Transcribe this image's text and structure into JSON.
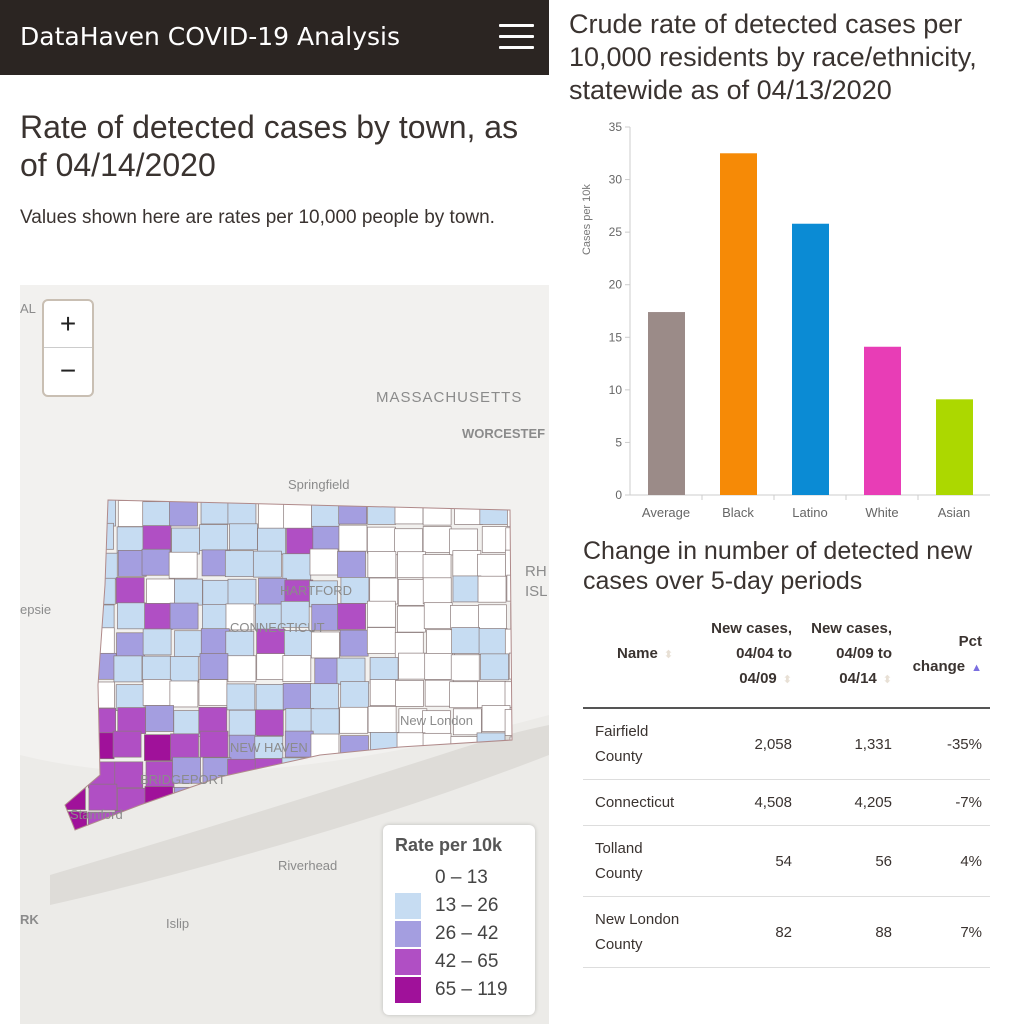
{
  "header": {
    "title": "DataHaven COVID-19 Analysis",
    "menu_icon": "hamburger-icon"
  },
  "map_section": {
    "title": "Rate of detected cases by town, as of 04/14/2020",
    "description": "Values shown here are rates per 10,000 people by town.",
    "zoom_in": "+",
    "zoom_out": "−",
    "labels": {
      "massachusetts": "MASSACHUSETTS",
      "worcester": "WORCESTEF",
      "springfield": "Springfield",
      "hartford": "HARTFORD",
      "connecticut": "CONNECTICUT",
      "new_haven": "NEW HAVEN",
      "bridgeport": "BRIDGEPORT",
      "stamford": "Stamford",
      "new_london": "New London",
      "riverhead": "Riverhead",
      "islip": "Islip",
      "rhode_island_1": "RH",
      "rhode_island_2": "ISL",
      "poughkeepsie": "epsie",
      "albany": "AL",
      "ny": "RK"
    },
    "legend": {
      "title": "Rate per 10k",
      "items": [
        {
          "label": "0 – 13",
          "color": "#ffffff"
        },
        {
          "label": "13 – 26",
          "color": "#c6dcf2"
        },
        {
          "label": "26 – 42",
          "color": "#a49ee0"
        },
        {
          "label": "42 – 65",
          "color": "#b04fc4"
        },
        {
          "label": "65 – 119",
          "color": "#a0119a"
        }
      ]
    }
  },
  "chart_data": {
    "type": "bar",
    "title": "Crude rate of detected cases per 10,000 residents by race/ethnicity, statewide as of 04/13/2020",
    "categories": [
      "Average",
      "Black",
      "Latino",
      "White",
      "Asian"
    ],
    "values": [
      17.4,
      32.5,
      25.8,
      14.1,
      9.1
    ],
    "colors": [
      "#9b8b88",
      "#f68a06",
      "#0b8bd4",
      "#e83db6",
      "#acd800"
    ],
    "ylabel": "Cases per 10k",
    "xlabel": "",
    "ylim": [
      0,
      35
    ],
    "yticks": [
      0,
      5,
      10,
      15,
      20,
      25,
      30,
      35
    ],
    "grid": false
  },
  "table": {
    "title": "Change in number of detected new cases over 5-day periods",
    "columns": [
      "Name",
      "New cases, 04/04 to 04/09",
      "New cases, 04/09 to 04/14",
      "Pct change"
    ],
    "rows": [
      [
        "Fairfield County",
        "2,058",
        "1,331",
        "-35%"
      ],
      [
        "Connecticut",
        "4,508",
        "4,205",
        "-7%"
      ],
      [
        "Tolland County",
        "54",
        "56",
        "4%"
      ],
      [
        "New London County",
        "82",
        "88",
        "7%"
      ]
    ]
  }
}
